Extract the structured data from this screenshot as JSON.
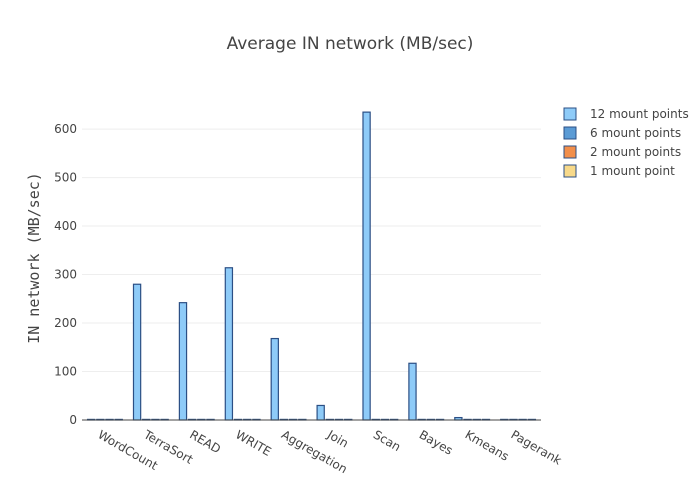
{
  "chart_data": {
    "type": "bar",
    "title": "Average IN network (MB/sec)",
    "xlabel": "",
    "ylabel": "IN network (MB/sec)",
    "ylim": [
      0,
      660
    ],
    "yticks": [
      0,
      100,
      200,
      300,
      400,
      500,
      600
    ],
    "grid": true,
    "legend_position": "right",
    "categories": [
      "WordCount",
      "TerraSort",
      "READ",
      "WRITE",
      "Aggregation",
      "Join",
      "Scan",
      "Bayes",
      "Kmeans",
      "Pagerank"
    ],
    "series": [
      {
        "name": "12 mount points",
        "color": "#8ecbf8",
        "edge": "#2b4f85",
        "values": [
          1,
          280,
          242,
          314,
          168,
          30,
          635,
          117,
          5,
          1
        ]
      },
      {
        "name": "6 mount points",
        "color": "#5b9bd5",
        "edge": "#2b4f85",
        "values": [
          0,
          0,
          0,
          0,
          0,
          0,
          0,
          0,
          0,
          0
        ]
      },
      {
        "name": "2 mount points",
        "color": "#f28f4b",
        "edge": "#2b4f85",
        "values": [
          0,
          0,
          0,
          0,
          0,
          0,
          0,
          0,
          0,
          0
        ]
      },
      {
        "name": "1 mount point",
        "color": "#f7d98a",
        "edge": "#2b4f85",
        "values": [
          0,
          0,
          0,
          0,
          0,
          0,
          0,
          0,
          0,
          0
        ]
      }
    ]
  }
}
